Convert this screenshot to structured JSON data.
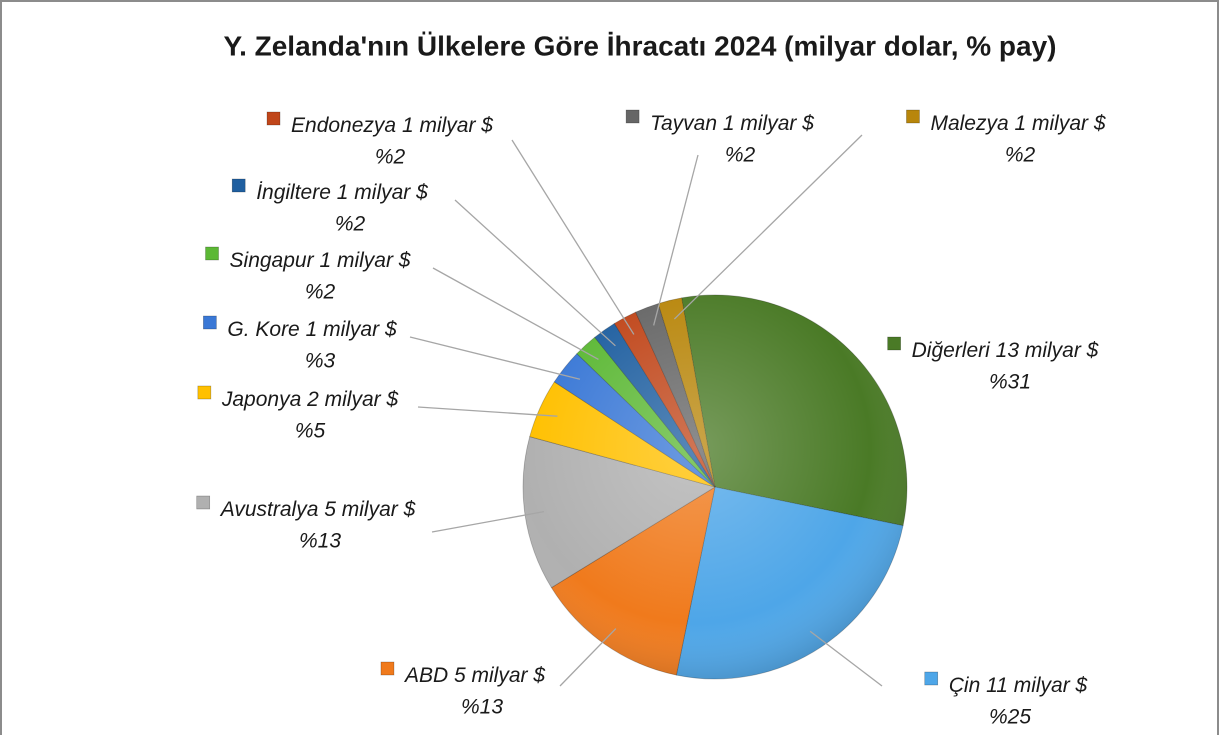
{
  "chart_data": {
    "type": "pie",
    "title": "Y. Zelanda'nın Ülkelere Göre İhracatı 2024 (milyar dolar, % pay)",
    "categories": [
      "Diğerleri",
      "Çin",
      "ABD",
      "Avustralya",
      "Japonya",
      "G. Kore",
      "Singapur",
      "İngiltere",
      "Endonezya",
      "Tayvan",
      "Malezya"
    ],
    "values": [
      31,
      25,
      13,
      13,
      5,
      3,
      2,
      2,
      2,
      2,
      2
    ],
    "value_labels": [
      "%31",
      "%25",
      "%13",
      "%13",
      "%5",
      "%3",
      "%2",
      "%2",
      "%2",
      "%2",
      "%2"
    ],
    "amounts": [
      13,
      11,
      5,
      5,
      2,
      1,
      1,
      1,
      1,
      1,
      1
    ],
    "amount_labels": [
      "13 milyar $",
      "11 milyar $",
      "5 milyar $",
      "5 milyar $",
      "2 milyar $",
      "1 milyar $",
      "1 milyar $",
      "1 milyar $",
      "1 milyar $",
      "1 milyar $",
      "1 milyar $"
    ],
    "colors": [
      "#4a7a26",
      "#4ea6e8",
      "#f07a1c",
      "#b0b0b0",
      "#ffc000",
      "#3a78d6",
      "#5cb835",
      "#1f5fa0",
      "#c0461a",
      "#666666",
      "#b8860b"
    ]
  }
}
